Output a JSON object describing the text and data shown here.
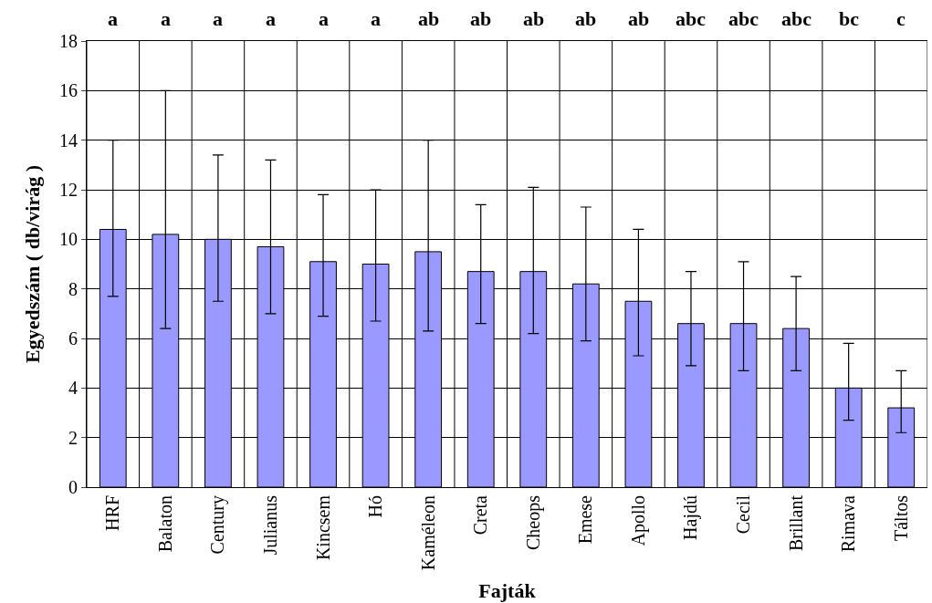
{
  "chart_data": {
    "type": "bar",
    "xlabel": "Fajták",
    "ylabel": "Egyedszám ( db/virág )",
    "categories": [
      "HRF",
      "Balaton",
      "Century",
      "Julianus",
      "Kincsem",
      "Hó",
      "Kaméleon",
      "Creta",
      "Cheops",
      "Emese",
      "Apollo",
      "Hajdú",
      "Cecil",
      "Brillant",
      "Rimava",
      "Táltos"
    ],
    "values": [
      10.4,
      10.2,
      10.0,
      9.7,
      9.1,
      9.0,
      9.5,
      8.7,
      8.7,
      8.2,
      7.5,
      6.6,
      6.6,
      6.4,
      4.0,
      3.2
    ],
    "errors": [
      [
        7.7,
        14.0
      ],
      [
        6.4,
        16.0
      ],
      [
        7.5,
        13.4
      ],
      [
        7.0,
        13.2
      ],
      [
        6.9,
        11.8
      ],
      [
        6.7,
        12.0
      ],
      [
        6.3,
        14.0
      ],
      [
        6.6,
        11.4
      ],
      [
        6.2,
        12.1
      ],
      [
        5.9,
        11.3
      ],
      [
        5.3,
        10.4
      ],
      [
        4.9,
        8.7
      ],
      [
        4.7,
        9.1
      ],
      [
        4.7,
        8.5
      ],
      [
        2.7,
        5.8
      ],
      [
        2.2,
        4.7
      ]
    ],
    "color": "#9999ff",
    "ylim": [
      0,
      18
    ],
    "yticks": [
      0,
      2,
      4,
      6,
      8,
      10,
      12,
      14,
      16,
      18
    ],
    "grid": true,
    "annotations": [
      "a",
      "a",
      "a",
      "a",
      "a",
      "a",
      "ab",
      "ab",
      "ab",
      "ab",
      "ab",
      "abc",
      "abc",
      "abc",
      "bc",
      "c"
    ]
  }
}
